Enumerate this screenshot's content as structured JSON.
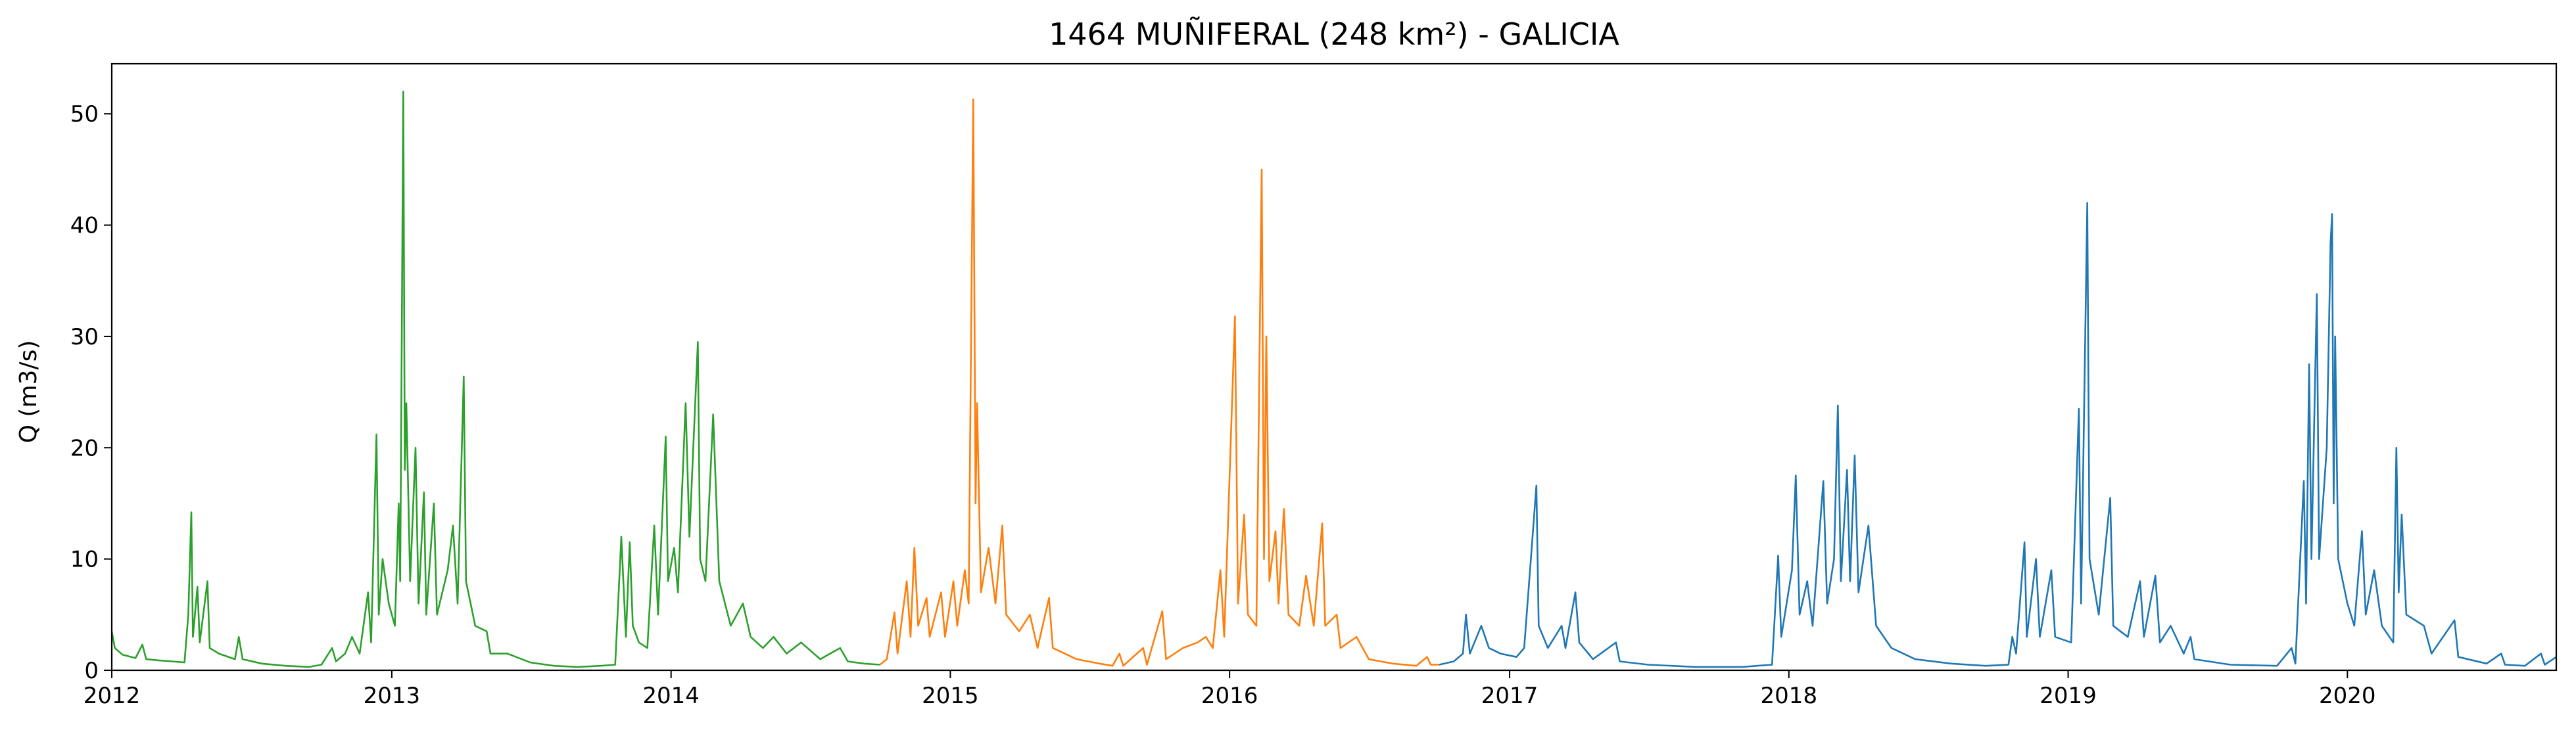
{
  "chart_data": {
    "type": "line",
    "title": "1464 MUÑIFERAL (248 km²) - GALICIA",
    "ylabel": "Q (m3/s)",
    "xlabel": "",
    "xlim": [
      "2012-01-01",
      "2020-09-30"
    ],
    "ylim": [
      0,
      54.5
    ],
    "x_ticks": [
      "2012",
      "2013",
      "2014",
      "2015",
      "2016",
      "2017",
      "2018",
      "2019",
      "2020"
    ],
    "y_ticks": [
      0,
      10,
      20,
      30,
      40,
      50
    ],
    "grid": false,
    "series": [
      {
        "color": "#2ca02c",
        "points": [
          [
            "2012-01-01",
            3.5
          ],
          [
            "2012-01-05",
            2.0
          ],
          [
            "2012-01-15",
            1.4
          ],
          [
            "2012-02-01",
            1.1
          ],
          [
            "2012-02-10",
            2.3
          ],
          [
            "2012-02-15",
            1.0
          ],
          [
            "2012-03-01",
            0.9
          ],
          [
            "2012-03-20",
            0.8
          ],
          [
            "2012-04-05",
            0.7
          ],
          [
            "2012-04-10",
            5.0
          ],
          [
            "2012-04-14",
            14.2
          ],
          [
            "2012-04-16",
            3.0
          ],
          [
            "2012-04-22",
            7.5
          ],
          [
            "2012-04-25",
            2.5
          ],
          [
            "2012-05-05",
            8.0
          ],
          [
            "2012-05-08",
            2.0
          ],
          [
            "2012-05-20",
            1.5
          ],
          [
            "2012-06-10",
            1.0
          ],
          [
            "2012-06-15",
            3.0
          ],
          [
            "2012-06-20",
            1.0
          ],
          [
            "2012-07-15",
            0.6
          ],
          [
            "2012-08-15",
            0.4
          ],
          [
            "2012-09-15",
            0.3
          ],
          [
            "2012-10-01",
            0.5
          ],
          [
            "2012-10-15",
            2.0
          ],
          [
            "2012-10-20",
            0.8
          ],
          [
            "2012-11-01",
            1.5
          ],
          [
            "2012-11-10",
            3.0
          ],
          [
            "2012-11-20",
            1.5
          ],
          [
            "2012-12-01",
            7.0
          ],
          [
            "2012-12-05",
            2.5
          ],
          [
            "2012-12-12",
            21.2
          ],
          [
            "2012-12-15",
            5.0
          ],
          [
            "2012-12-20",
            10.0
          ],
          [
            "2012-12-28",
            6.0
          ],
          [
            "2013-01-05",
            4.0
          ],
          [
            "2013-01-10",
            15.0
          ],
          [
            "2013-01-12",
            8.0
          ],
          [
            "2013-01-16",
            52.0
          ],
          [
            "2013-01-18",
            18.0
          ],
          [
            "2013-01-20",
            24.0
          ],
          [
            "2013-01-25",
            8.0
          ],
          [
            "2013-02-01",
            20.0
          ],
          [
            "2013-02-05",
            6.0
          ],
          [
            "2013-02-12",
            16.0
          ],
          [
            "2013-02-15",
            5.0
          ],
          [
            "2013-02-25",
            15.0
          ],
          [
            "2013-03-01",
            5.0
          ],
          [
            "2013-03-15",
            9.0
          ],
          [
            "2013-03-22",
            13.0
          ],
          [
            "2013-03-28",
            6.0
          ],
          [
            "2013-04-05",
            26.4
          ],
          [
            "2013-04-08",
            8.0
          ],
          [
            "2013-04-20",
            4.0
          ],
          [
            "2013-05-05",
            3.5
          ],
          [
            "2013-05-10",
            1.5
          ],
          [
            "2013-06-01",
            1.5
          ],
          [
            "2013-07-01",
            0.7
          ],
          [
            "2013-08-01",
            0.4
          ],
          [
            "2013-09-01",
            0.3
          ],
          [
            "2013-10-01",
            0.4
          ],
          [
            "2013-10-20",
            0.5
          ],
          [
            "2013-10-28",
            12.0
          ],
          [
            "2013-11-03",
            3.0
          ],
          [
            "2013-11-08",
            11.5
          ],
          [
            "2013-11-12",
            4.0
          ],
          [
            "2013-11-20",
            2.5
          ],
          [
            "2013-12-01",
            2.0
          ],
          [
            "2013-12-10",
            13.0
          ],
          [
            "2013-12-15",
            5.0
          ],
          [
            "2013-12-25",
            21.0
          ],
          [
            "2013-12-28",
            8.0
          ],
          [
            "2014-01-05",
            11.0
          ],
          [
            "2014-01-10",
            7.0
          ],
          [
            "2014-01-20",
            24.0
          ],
          [
            "2014-01-25",
            12.0
          ],
          [
            "2014-02-05",
            29.5
          ],
          [
            "2014-02-08",
            10.0
          ],
          [
            "2014-02-15",
            8.0
          ],
          [
            "2014-02-25",
            23.0
          ],
          [
            "2014-03-05",
            8.0
          ],
          [
            "2014-03-20",
            4.0
          ],
          [
            "2014-04-05",
            6.0
          ],
          [
            "2014-04-15",
            3.0
          ],
          [
            "2014-05-01",
            2.0
          ],
          [
            "2014-05-15",
            3.0
          ],
          [
            "2014-06-01",
            1.5
          ],
          [
            "2014-06-20",
            2.5
          ],
          [
            "2014-07-15",
            1.0
          ],
          [
            "2014-08-10",
            2.0
          ],
          [
            "2014-08-20",
            0.8
          ],
          [
            "2014-09-10",
            0.6
          ],
          [
            "2014-10-01",
            0.5
          ]
        ]
      },
      {
        "color": "#ff7f0e",
        "points": [
          [
            "2014-10-01",
            0.5
          ],
          [
            "2014-10-10",
            1.0
          ],
          [
            "2014-10-20",
            5.2
          ],
          [
            "2014-10-24",
            1.5
          ],
          [
            "2014-11-05",
            8.0
          ],
          [
            "2014-11-10",
            3.0
          ],
          [
            "2014-11-15",
            11.0
          ],
          [
            "2014-11-20",
            4.0
          ],
          [
            "2014-12-01",
            6.5
          ],
          [
            "2014-12-05",
            3.0
          ],
          [
            "2014-12-20",
            7.0
          ],
          [
            "2014-12-25",
            3.0
          ],
          [
            "2015-01-05",
            8.0
          ],
          [
            "2015-01-10",
            4.0
          ],
          [
            "2015-01-20",
            9.0
          ],
          [
            "2015-01-25",
            6.0
          ],
          [
            "2015-01-31",
            51.3
          ],
          [
            "2015-02-03",
            15.0
          ],
          [
            "2015-02-05",
            24.0
          ],
          [
            "2015-02-10",
            7.0
          ],
          [
            "2015-02-20",
            11.0
          ],
          [
            "2015-03-01",
            6.0
          ],
          [
            "2015-03-10",
            13.0
          ],
          [
            "2015-03-15",
            5.0
          ],
          [
            "2015-04-01",
            3.5
          ],
          [
            "2015-04-15",
            5.0
          ],
          [
            "2015-04-25",
            2.0
          ],
          [
            "2015-05-10",
            6.5
          ],
          [
            "2015-05-15",
            2.0
          ],
          [
            "2015-06-15",
            1.0
          ],
          [
            "2015-07-15",
            0.6
          ],
          [
            "2015-08-01",
            0.4
          ],
          [
            "2015-08-10",
            1.5
          ],
          [
            "2015-08-15",
            0.4
          ],
          [
            "2015-09-10",
            2.0
          ],
          [
            "2015-09-15",
            0.5
          ],
          [
            "2015-10-05",
            5.3
          ],
          [
            "2015-10-10",
            1.0
          ],
          [
            "2015-11-01",
            2.0
          ],
          [
            "2015-11-20",
            2.5
          ],
          [
            "2015-12-01",
            3.0
          ],
          [
            "2015-12-10",
            2.0
          ],
          [
            "2015-12-20",
            9.0
          ],
          [
            "2015-12-25",
            3.0
          ],
          [
            "2016-01-08",
            31.8
          ],
          [
            "2016-01-12",
            6.0
          ],
          [
            "2016-01-20",
            14.0
          ],
          [
            "2016-01-25",
            5.0
          ],
          [
            "2016-02-05",
            4.0
          ],
          [
            "2016-02-12",
            45.0
          ],
          [
            "2016-02-15",
            10.0
          ],
          [
            "2016-02-18",
            30.0
          ],
          [
            "2016-02-22",
            8.0
          ],
          [
            "2016-03-01",
            12.5
          ],
          [
            "2016-03-05",
            6.0
          ],
          [
            "2016-03-12",
            14.5
          ],
          [
            "2016-03-18",
            5.0
          ],
          [
            "2016-04-01",
            4.0
          ],
          [
            "2016-04-10",
            8.5
          ],
          [
            "2016-04-20",
            4.0
          ],
          [
            "2016-05-01",
            13.2
          ],
          [
            "2016-05-05",
            4.0
          ],
          [
            "2016-05-20",
            5.0
          ],
          [
            "2016-05-25",
            2.0
          ],
          [
            "2016-06-15",
            3.0
          ],
          [
            "2016-07-01",
            1.0
          ],
          [
            "2016-08-01",
            0.6
          ],
          [
            "2016-09-01",
            0.4
          ],
          [
            "2016-09-15",
            1.2
          ],
          [
            "2016-09-20",
            0.5
          ],
          [
            "2016-10-01",
            0.5
          ]
        ]
      },
      {
        "color": "#1f77b4",
        "points": [
          [
            "2016-10-01",
            0.5
          ],
          [
            "2016-10-20",
            0.8
          ],
          [
            "2016-11-01",
            1.5
          ],
          [
            "2016-11-05",
            5.0
          ],
          [
            "2016-11-10",
            1.5
          ],
          [
            "2016-11-25",
            4.0
          ],
          [
            "2016-12-05",
            2.0
          ],
          [
            "2016-12-20",
            1.5
          ],
          [
            "2017-01-10",
            1.2
          ],
          [
            "2017-01-20",
            2.0
          ],
          [
            "2017-02-05",
            16.6
          ],
          [
            "2017-02-08",
            4.0
          ],
          [
            "2017-02-20",
            2.0
          ],
          [
            "2017-03-10",
            4.0
          ],
          [
            "2017-03-15",
            2.0
          ],
          [
            "2017-03-28",
            7.0
          ],
          [
            "2017-04-02",
            2.5
          ],
          [
            "2017-04-20",
            1.0
          ],
          [
            "2017-05-20",
            2.5
          ],
          [
            "2017-05-25",
            0.8
          ],
          [
            "2017-07-01",
            0.5
          ],
          [
            "2017-09-01",
            0.3
          ],
          [
            "2017-11-01",
            0.3
          ],
          [
            "2017-12-10",
            0.5
          ],
          [
            "2017-12-18",
            10.3
          ],
          [
            "2017-12-22",
            3.0
          ],
          [
            "2018-01-05",
            9.0
          ],
          [
            "2018-01-10",
            17.5
          ],
          [
            "2018-01-15",
            5.0
          ],
          [
            "2018-01-25",
            8.0
          ],
          [
            "2018-02-01",
            4.0
          ],
          [
            "2018-02-15",
            17.0
          ],
          [
            "2018-02-20",
            6.0
          ],
          [
            "2018-03-01",
            10.0
          ],
          [
            "2018-03-06",
            23.8
          ],
          [
            "2018-03-10",
            8.0
          ],
          [
            "2018-03-18",
            18.0
          ],
          [
            "2018-03-22",
            8.0
          ],
          [
            "2018-03-28",
            19.3
          ],
          [
            "2018-04-02",
            7.0
          ],
          [
            "2018-04-15",
            13.0
          ],
          [
            "2018-04-25",
            4.0
          ],
          [
            "2018-05-15",
            2.0
          ],
          [
            "2018-06-15",
            1.0
          ],
          [
            "2018-08-01",
            0.6
          ],
          [
            "2018-09-15",
            0.4
          ],
          [
            "2018-10-15",
            0.5
          ],
          [
            "2018-10-20",
            3.0
          ],
          [
            "2018-10-25",
            1.5
          ],
          [
            "2018-11-05",
            11.5
          ],
          [
            "2018-11-08",
            3.0
          ],
          [
            "2018-11-20",
            10.0
          ],
          [
            "2018-11-25",
            3.0
          ],
          [
            "2018-12-10",
            9.0
          ],
          [
            "2018-12-15",
            3.0
          ],
          [
            "2019-01-05",
            2.5
          ],
          [
            "2019-01-15",
            23.5
          ],
          [
            "2019-01-18",
            6.0
          ],
          [
            "2019-01-26",
            42.0
          ],
          [
            "2019-01-29",
            10.0
          ],
          [
            "2019-02-10",
            5.0
          ],
          [
            "2019-02-25",
            15.5
          ],
          [
            "2019-03-01",
            4.0
          ],
          [
            "2019-03-20",
            3.0
          ],
          [
            "2019-04-05",
            8.0
          ],
          [
            "2019-04-10",
            3.0
          ],
          [
            "2019-04-25",
            8.5
          ],
          [
            "2019-05-01",
            2.5
          ],
          [
            "2019-05-15",
            4.0
          ],
          [
            "2019-06-01",
            1.5
          ],
          [
            "2019-06-10",
            3.0
          ],
          [
            "2019-06-15",
            1.0
          ],
          [
            "2019-08-01",
            0.5
          ],
          [
            "2019-10-01",
            0.4
          ],
          [
            "2019-10-20",
            2.0
          ],
          [
            "2019-10-25",
            0.6
          ],
          [
            "2019-11-05",
            17.0
          ],
          [
            "2019-11-08",
            6.0
          ],
          [
            "2019-11-12",
            27.5
          ],
          [
            "2019-11-15",
            10.0
          ],
          [
            "2019-11-22",
            33.8
          ],
          [
            "2019-11-25",
            10.0
          ],
          [
            "2019-12-05",
            20.0
          ],
          [
            "2019-12-10",
            38.4
          ],
          [
            "2019-12-12",
            41.0
          ],
          [
            "2019-12-14",
            15.0
          ],
          [
            "2019-12-16",
            30.0
          ],
          [
            "2019-12-20",
            10.0
          ],
          [
            "2020-01-01",
            6.0
          ],
          [
            "2020-01-10",
            4.0
          ],
          [
            "2020-01-20",
            12.5
          ],
          [
            "2020-01-25",
            5.0
          ],
          [
            "2020-02-05",
            9.0
          ],
          [
            "2020-02-15",
            4.0
          ],
          [
            "2020-03-01",
            2.5
          ],
          [
            "2020-03-05",
            20.0
          ],
          [
            "2020-03-08",
            7.0
          ],
          [
            "2020-03-12",
            14.0
          ],
          [
            "2020-03-18",
            5.0
          ],
          [
            "2020-04-10",
            4.0
          ],
          [
            "2020-04-20",
            1.5
          ],
          [
            "2020-05-20",
            4.5
          ],
          [
            "2020-05-25",
            1.2
          ],
          [
            "2020-07-01",
            0.6
          ],
          [
            "2020-07-20",
            1.5
          ],
          [
            "2020-07-25",
            0.5
          ],
          [
            "2020-08-20",
            0.4
          ],
          [
            "2020-09-10",
            1.5
          ],
          [
            "2020-09-15",
            0.5
          ],
          [
            "2020-09-30",
            1.2
          ]
        ]
      }
    ]
  }
}
